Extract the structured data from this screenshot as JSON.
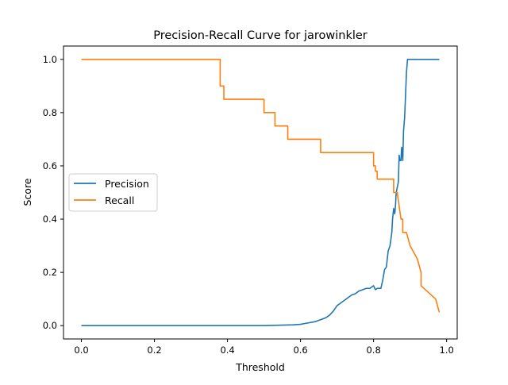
{
  "chart_data": {
    "type": "line",
    "title": "Precision-Recall Curve for jarowinkler",
    "xlabel": "Threshold",
    "ylabel": "Score",
    "xlim": [
      -0.049,
      1.029
    ],
    "ylim": [
      -0.05,
      1.05
    ],
    "xticks": [
      0.0,
      0.2,
      0.4,
      0.6,
      0.8,
      1.0
    ],
    "xtick_labels": [
      "0.0",
      "0.2",
      "0.4",
      "0.6",
      "0.8",
      "1.0"
    ],
    "yticks": [
      0.0,
      0.2,
      0.4,
      0.6,
      0.8,
      1.0
    ],
    "ytick_labels": [
      "0.0",
      "0.2",
      "0.4",
      "0.6",
      "0.8",
      "1.0"
    ],
    "grid": false,
    "legend": {
      "position": "center-left",
      "entries": [
        "Precision",
        "Recall"
      ]
    },
    "series": [
      {
        "name": "Precision",
        "color": "#1f77b4",
        "x": [
          0.0,
          0.1,
          0.2,
          0.3,
          0.4,
          0.5,
          0.55,
          0.58,
          0.6,
          0.62,
          0.64,
          0.66,
          0.67,
          0.68,
          0.69,
          0.7,
          0.71,
          0.72,
          0.73,
          0.74,
          0.75,
          0.76,
          0.77,
          0.78,
          0.79,
          0.8,
          0.805,
          0.81,
          0.82,
          0.825,
          0.83,
          0.835,
          0.84,
          0.845,
          0.85,
          0.852,
          0.855,
          0.858,
          0.86,
          0.862,
          0.865,
          0.868,
          0.87,
          0.872,
          0.875,
          0.877,
          0.88,
          0.882,
          0.885,
          0.888,
          0.89,
          0.893,
          0.9,
          0.95,
          0.98
        ],
        "y": [
          0.0,
          0.0,
          0.0,
          0.0,
          0.0,
          0.0,
          0.002,
          0.003,
          0.005,
          0.01,
          0.015,
          0.025,
          0.03,
          0.04,
          0.055,
          0.075,
          0.085,
          0.095,
          0.105,
          0.115,
          0.12,
          0.13,
          0.135,
          0.14,
          0.14,
          0.15,
          0.135,
          0.14,
          0.14,
          0.17,
          0.21,
          0.22,
          0.28,
          0.3,
          0.35,
          0.4,
          0.44,
          0.42,
          0.45,
          0.5,
          0.52,
          0.54,
          0.64,
          0.62,
          0.62,
          0.67,
          0.62,
          0.73,
          0.78,
          0.88,
          0.95,
          1.0,
          1.0,
          1.0,
          1.0
        ]
      },
      {
        "name": "Recall",
        "color": "#ff7f0e",
        "x": [
          0.0,
          0.38,
          0.38,
          0.39,
          0.39,
          0.5,
          0.5,
          0.53,
          0.53,
          0.565,
          0.565,
          0.655,
          0.655,
          0.8,
          0.8,
          0.805,
          0.805,
          0.81,
          0.81,
          0.855,
          0.855,
          0.865,
          0.87,
          0.875,
          0.88,
          0.88,
          0.89,
          0.9,
          0.92,
          0.93,
          0.93,
          0.97,
          0.98
        ],
        "y": [
          1.0,
          1.0,
          0.9,
          0.9,
          0.85,
          0.85,
          0.8,
          0.8,
          0.75,
          0.75,
          0.7,
          0.7,
          0.65,
          0.65,
          0.6,
          0.6,
          0.58,
          0.58,
          0.55,
          0.55,
          0.5,
          0.5,
          0.45,
          0.4,
          0.4,
          0.35,
          0.35,
          0.3,
          0.25,
          0.2,
          0.15,
          0.1,
          0.05
        ]
      }
    ]
  }
}
